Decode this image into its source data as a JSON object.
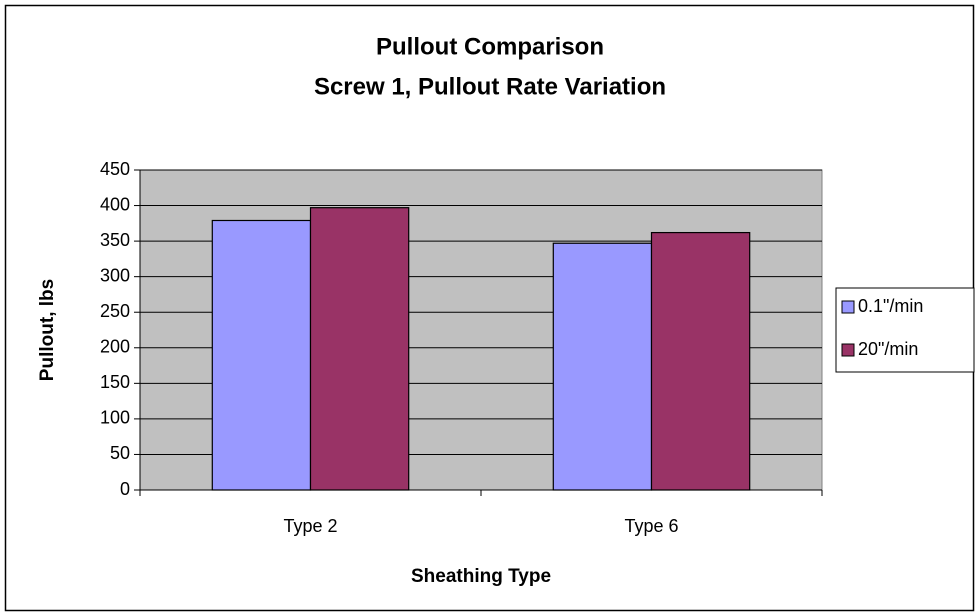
{
  "chart_data": {
    "type": "bar",
    "title": "Pullout Comparison",
    "subtitle": "Screw 1, Pullout Rate Variation",
    "x_label": "Sheathing Type",
    "y_label": "Pullout, lbs",
    "categories": [
      "Type 2",
      "Type 6"
    ],
    "series": [
      {
        "name": "0.1\"/min",
        "color": "#9999ff",
        "values": [
          379,
          347
        ]
      },
      {
        "name": "20\"/min",
        "color": "#993366",
        "values": [
          397,
          362
        ]
      }
    ],
    "ylim": [
      0,
      450
    ],
    "yticks": [
      0,
      50,
      100,
      150,
      200,
      250,
      300,
      350,
      400,
      450
    ],
    "grid": true,
    "legend": "right"
  }
}
